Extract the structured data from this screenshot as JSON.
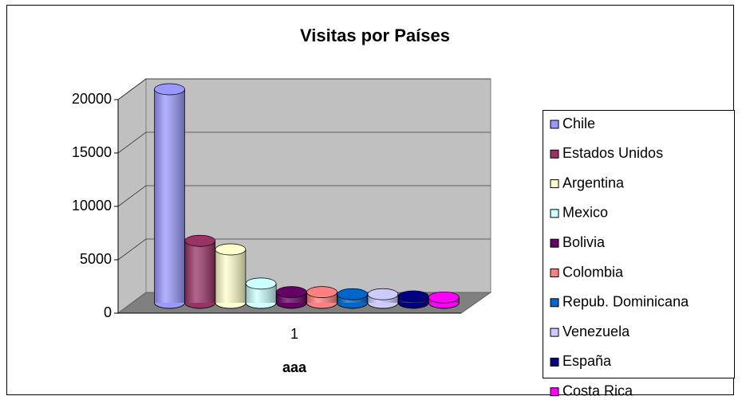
{
  "chart_data": {
    "type": "bar3d-cylinder",
    "title": "Visitas por Países",
    "x_label": "aaa",
    "categories": [
      "1"
    ],
    "series": [
      {
        "name": "Chile",
        "color": "#9999ff",
        "values": [
          20000
        ]
      },
      {
        "name": "Estados Unidos",
        "color": "#993366",
        "values": [
          5800
        ]
      },
      {
        "name": "Argentina",
        "color": "#ffffcc",
        "values": [
          5000
        ]
      },
      {
        "name": "Mexico",
        "color": "#ccffff",
        "values": [
          1800
        ]
      },
      {
        "name": "Bolivia",
        "color": "#660066",
        "values": [
          1000
        ]
      },
      {
        "name": "Colombia",
        "color": "#ff8080",
        "values": [
          1000
        ]
      },
      {
        "name": "Repub. Dominicana",
        "color": "#0066cc",
        "values": [
          800
        ]
      },
      {
        "name": "Venezuela",
        "color": "#ccccff",
        "values": [
          800
        ]
      },
      {
        "name": "España",
        "color": "#000080",
        "values": [
          600
        ]
      },
      {
        "name": "Costa Rica",
        "color": "#ff00ff",
        "values": [
          500
        ]
      }
    ],
    "ylim": [
      0,
      20000
    ],
    "yticks": [
      0,
      5000,
      10000,
      15000,
      20000
    ],
    "grid": true,
    "legend": "right"
  }
}
